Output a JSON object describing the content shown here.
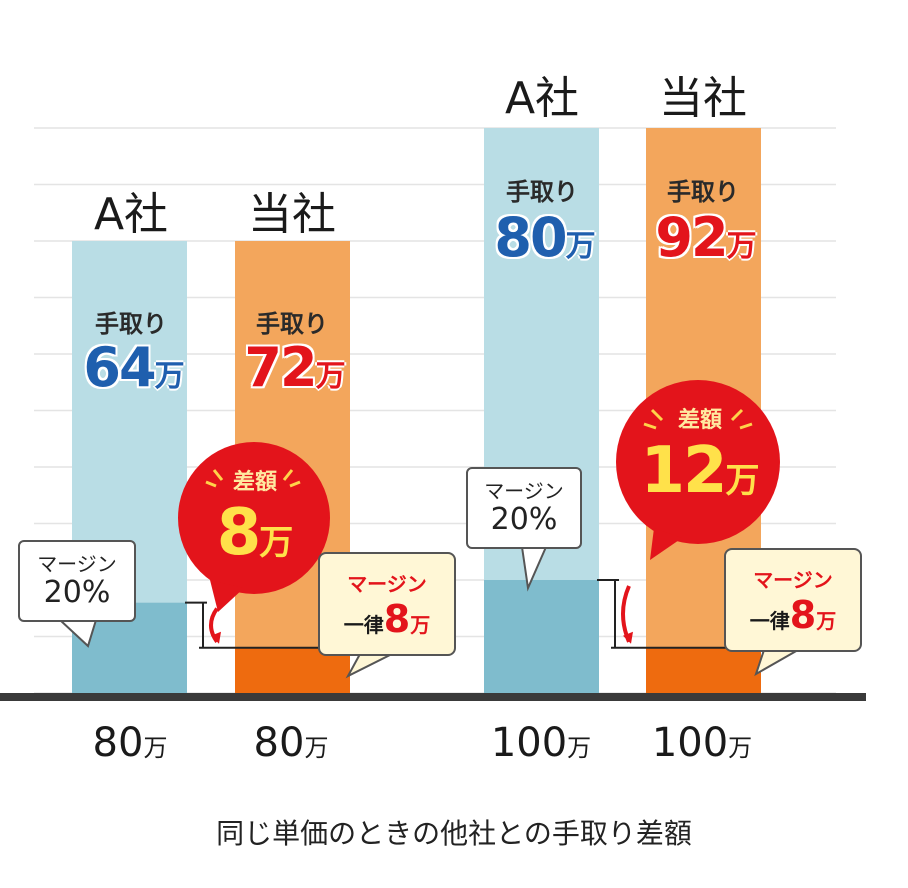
{
  "chart_data": {
    "type": "bar",
    "caption": "同じ単価のときの他社との手取り差額",
    "groups": [
      {
        "unit_price": "80",
        "unit_price_unit": "万",
        "diff_label": "差額",
        "diff_value": "8",
        "diff_unit": "万",
        "bars": [
          {
            "company": "A社",
            "total": 80,
            "margin": 16,
            "takehome_label": "手取り",
            "takehome_value": "64",
            "takehome_unit": "万",
            "margin_label": "マージン",
            "margin_text": "20%"
          },
          {
            "company": "当社",
            "total": 80,
            "margin": 8,
            "takehome_label": "手取り",
            "takehome_value": "72",
            "takehome_unit": "万",
            "margin_label": "マージン",
            "margin_prefix": "一律",
            "margin_value": "8",
            "margin_unit": "万"
          }
        ]
      },
      {
        "unit_price": "100",
        "unit_price_unit": "万",
        "diff_label": "差額",
        "diff_value": "12",
        "diff_unit": "万",
        "bars": [
          {
            "company": "A社",
            "total": 100,
            "margin": 20,
            "takehome_label": "手取り",
            "takehome_value": "80",
            "takehome_unit": "万",
            "margin_label": "マージン",
            "margin_text": "20%"
          },
          {
            "company": "当社",
            "total": 100,
            "margin": 8,
            "takehome_label": "手取り",
            "takehome_value": "92",
            "takehome_unit": "万",
            "margin_label": "マージン",
            "margin_prefix": "一律",
            "margin_value": "8",
            "margin_unit": "万"
          }
        ]
      }
    ],
    "ylim": [
      0,
      100
    ],
    "grid": true,
    "colors": {
      "a_takehome": "#b9dde5",
      "a_margin": "#7fbccd",
      "own_takehome": "#f3a65c",
      "own_margin": "#ee6b0f",
      "diff_bubble": "#e3141b",
      "takehome_blue": "#1f5fae",
      "takehome_red": "#e3141b",
      "baseline": "#3a3a3a"
    }
  }
}
